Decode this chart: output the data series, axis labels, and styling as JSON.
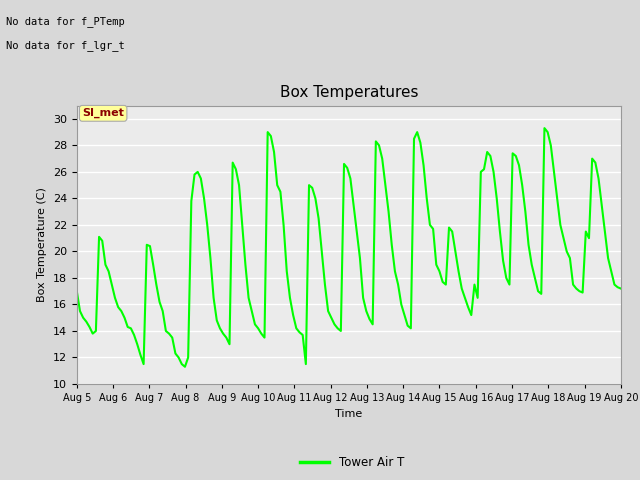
{
  "title": "Box Temperatures",
  "xlabel": "Time",
  "ylabel": "Box Temperature (C)",
  "ylim": [
    10,
    31
  ],
  "yticks": [
    10,
    12,
    14,
    16,
    18,
    20,
    22,
    24,
    26,
    28,
    30
  ],
  "line_color": "#00FF00",
  "line_width": 1.5,
  "bg_color": "#D8D8D8",
  "plot_bg": "#EBEBEB",
  "no_data_text1": "No data for f_PTemp",
  "no_data_text2": "No data for f_lgr_t",
  "legend_label": "Tower Air T",
  "annotation_label": "SI_met",
  "annotation_color": "#8B0000",
  "annotation_bg": "#FFFF99",
  "x_dates": [
    "Aug 5",
    "Aug 6",
    "Aug 7",
    "Aug 8",
    "Aug 9",
    "Aug 10",
    "Aug 11",
    "Aug 12",
    "Aug 13",
    "Aug 14",
    "Aug 15",
    "Aug 16",
    "Aug 17",
    "Aug 18",
    "Aug 19",
    "Aug 20"
  ],
  "tower_air_t": [
    17.0,
    15.5,
    15.0,
    14.7,
    14.3,
    13.8,
    14.0,
    21.1,
    20.8,
    19.0,
    18.5,
    17.5,
    16.5,
    15.8,
    15.5,
    15.0,
    14.3,
    14.2,
    13.7,
    13.0,
    12.2,
    11.5,
    20.5,
    20.4,
    19.0,
    17.5,
    16.2,
    15.5,
    14.0,
    13.8,
    13.5,
    12.3,
    12.0,
    11.5,
    11.3,
    12.0,
    23.8,
    25.8,
    26.0,
    25.5,
    24.0,
    22.0,
    19.5,
    16.5,
    14.8,
    14.2,
    13.8,
    13.5,
    13.0,
    26.7,
    26.2,
    25.0,
    22.0,
    19.0,
    16.5,
    15.5,
    14.5,
    14.2,
    13.8,
    13.5,
    29.0,
    28.7,
    27.5,
    25.0,
    24.5,
    22.0,
    18.5,
    16.5,
    15.2,
    14.2,
    13.9,
    13.7,
    11.5,
    25.0,
    24.8,
    24.0,
    22.5,
    20.0,
    17.5,
    15.5,
    15.0,
    14.5,
    14.2,
    14.0,
    26.6,
    26.3,
    25.5,
    23.5,
    21.5,
    19.5,
    16.5,
    15.5,
    14.9,
    14.5,
    28.3,
    28.0,
    27.0,
    25.0,
    23.0,
    20.5,
    18.5,
    17.5,
    16.0,
    15.2,
    14.4,
    14.2,
    28.5,
    29.0,
    28.2,
    26.5,
    24.0,
    22.0,
    21.7,
    19.0,
    18.5,
    17.7,
    17.5,
    21.8,
    21.5,
    20.0,
    18.5,
    17.2,
    16.5,
    15.8,
    15.2,
    17.5,
    16.5,
    26.0,
    26.2,
    27.5,
    27.2,
    26.0,
    24.0,
    21.5,
    19.3,
    18.0,
    17.5,
    27.4,
    27.2,
    26.5,
    25.0,
    23.0,
    20.5,
    19.0,
    18.0,
    17.0,
    16.8,
    29.3,
    29.0,
    28.0,
    26.0,
    24.0,
    22.0,
    21.0,
    20.0,
    19.5,
    17.5,
    17.2,
    17.0,
    16.9,
    21.5,
    21.0,
    27.0,
    26.7,
    25.5,
    23.5,
    21.5,
    19.5,
    18.5,
    17.5,
    17.3,
    17.2
  ]
}
